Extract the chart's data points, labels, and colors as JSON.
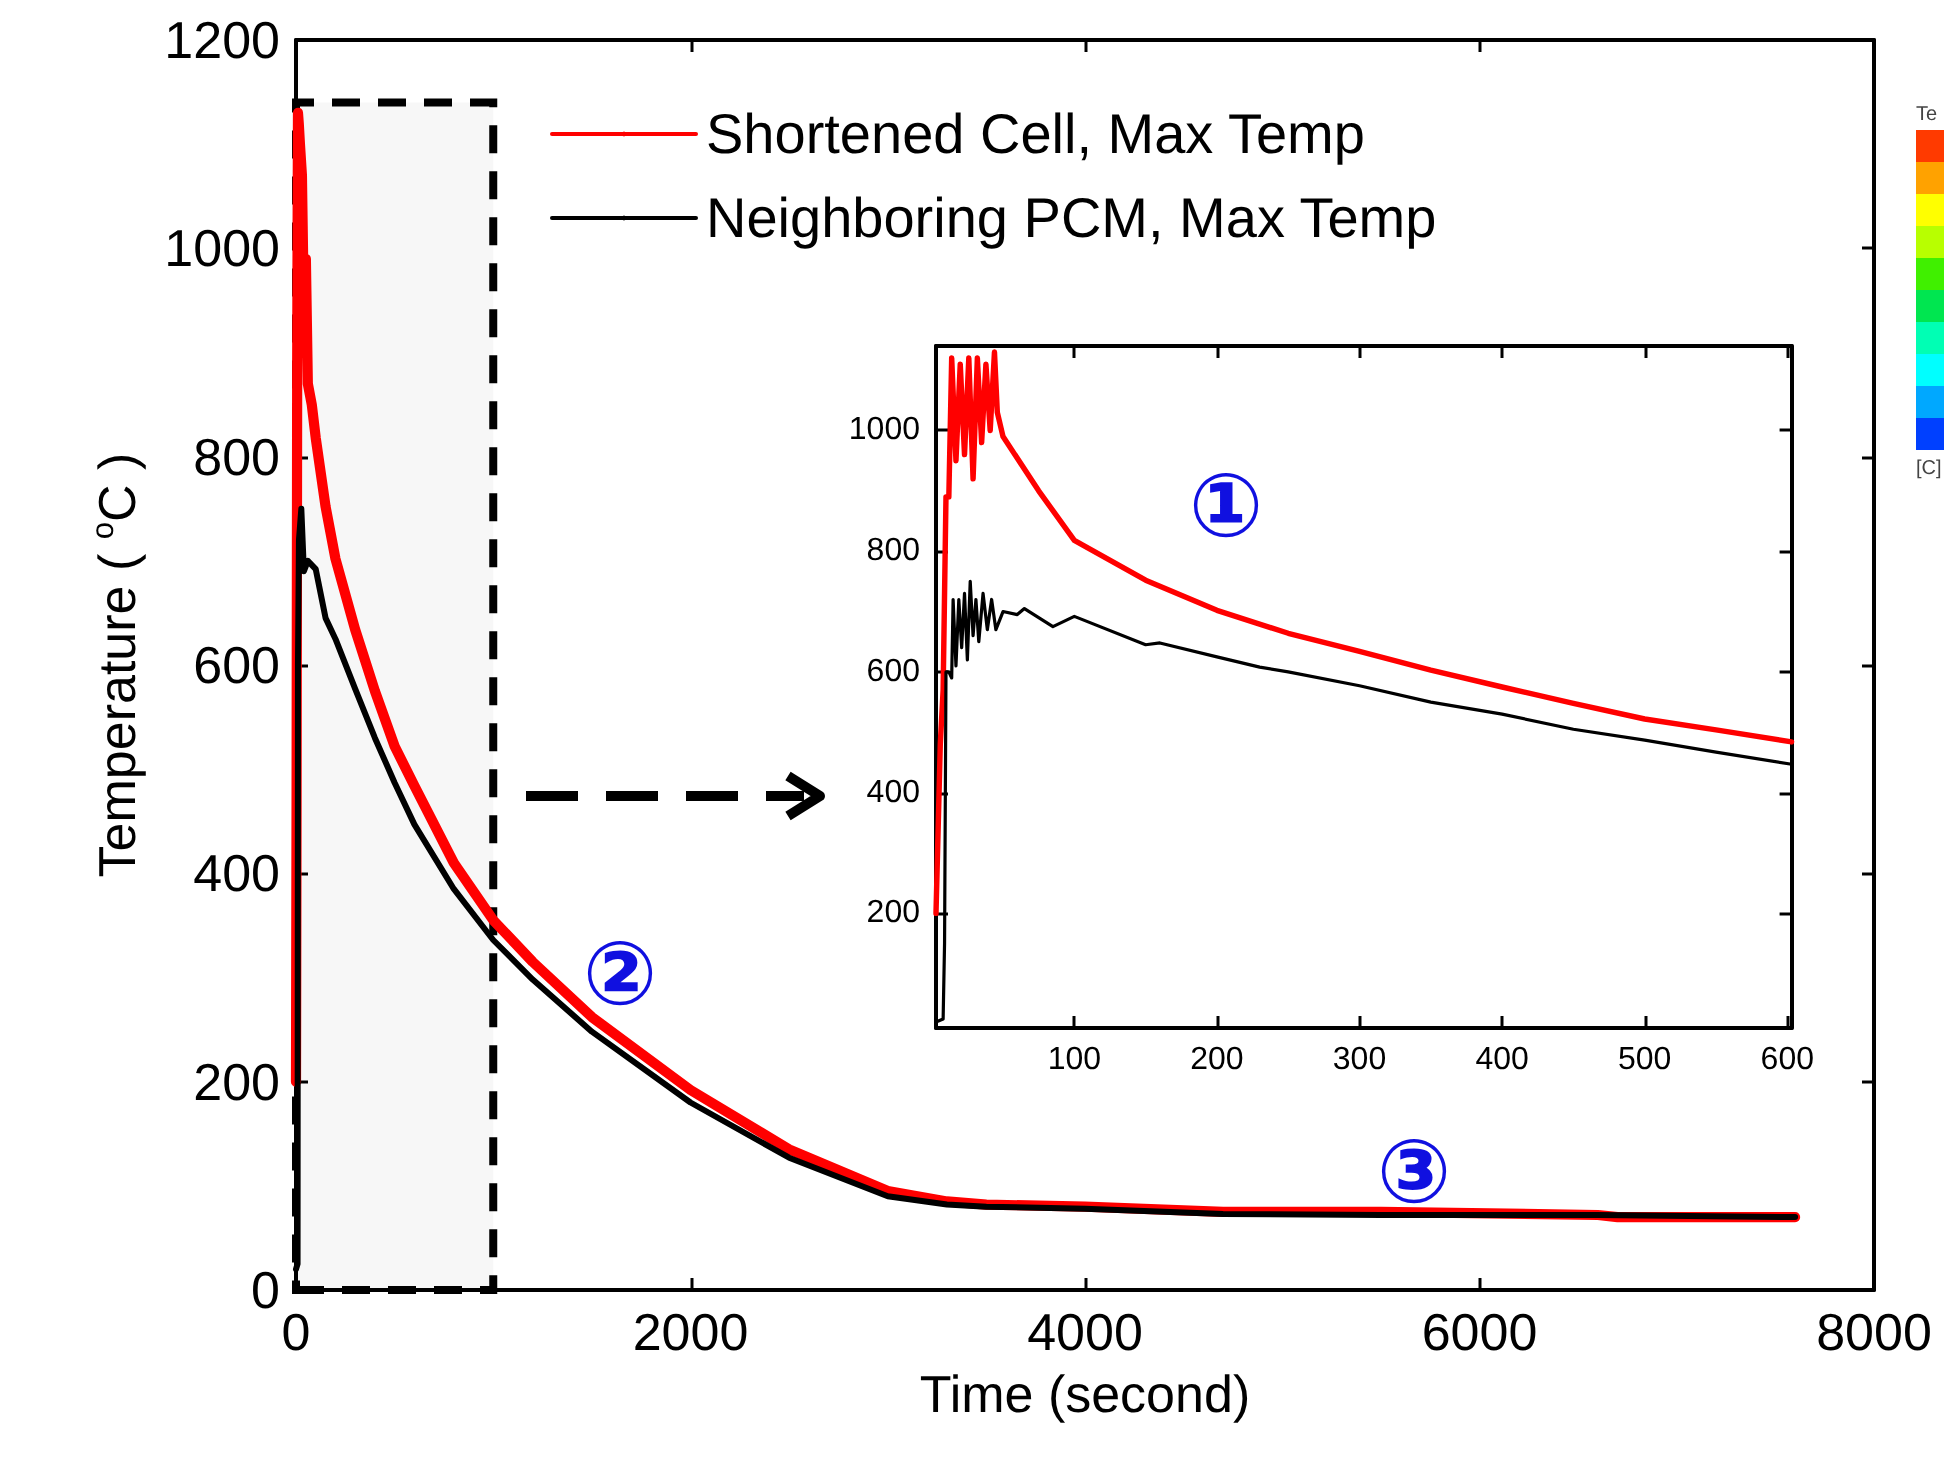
{
  "chart_data": [
    {
      "type": "line",
      "xlabel": "Time (second)",
      "ylabel": "Temperature ( $^{o}$C )",
      "xlim": [
        0,
        8000
      ],
      "ylim": [
        0,
        1200
      ],
      "xticks": [
        0,
        2000,
        4000,
        6000,
        8000
      ],
      "yticks": [
        0,
        200,
        400,
        600,
        800,
        1000,
        1200
      ],
      "grid": false,
      "legend": "top",
      "marker": "none",
      "line_style": "solid",
      "series": [
        {
          "name": "Shortened Cell, Max Temp",
          "color": "#ff0000",
          "x": [
            0,
            3,
            6,
            10,
            14,
            20,
            30,
            40,
            50,
            60,
            80,
            100,
            150,
            200,
            300,
            400,
            500,
            600,
            800,
            1000,
            1200,
            1500,
            2000,
            2500,
            3000,
            3300,
            3500,
            4000,
            4700,
            5500,
            6600,
            6700,
            7600
          ],
          "values": [
            200,
            480,
            890,
            1130,
            1120,
            1100,
            1070,
            940,
            990,
            870,
            850,
            818,
            752,
            702,
            634,
            575,
            522,
            484,
            410,
            355,
            315,
            262,
            192,
            135,
            95,
            85,
            82,
            80,
            75,
            75,
            72,
            70,
            70
          ]
        },
        {
          "name": "Neighboring PCM, Max Temp",
          "color": "#000000",
          "x": [
            0,
            8,
            10,
            15,
            27,
            40,
            60,
            100,
            150,
            200,
            300,
            400,
            500,
            600,
            800,
            1000,
            1200,
            1500,
            2000,
            2500,
            3000,
            3300,
            3500,
            4000,
            4700,
            5500,
            6600,
            7600
          ],
          "values": [
            20,
            25,
            600,
            720,
            750,
            690,
            700,
            692,
            645,
            625,
            577,
            530,
            487,
            447,
            385,
            336,
            298,
            248,
            180,
            127,
            90,
            82,
            80,
            78,
            73,
            72,
            72,
            70
          ]
        }
      ],
      "bands": [
        {
          "axis": "x",
          "from": 0,
          "to": 1000,
          "color": "#000000"
        }
      ],
      "annotations": [
        "②",
        "③",
        "Te",
        "[C]"
      ]
    },
    {
      "type": "line",
      "xlim": [
        3,
        603
      ],
      "ylim": [
        10,
        1140
      ],
      "xticks": [
        100,
        200,
        300,
        400,
        500,
        600
      ],
      "yticks": [
        200,
        400,
        600,
        800,
        1000
      ],
      "grid": false,
      "marker": "none",
      "line_style": "solid",
      "series": [
        {
          "color": "#ff0000",
          "x": [
            3,
            6,
            8,
            10,
            12,
            14,
            17,
            20,
            23,
            26,
            29,
            32,
            35,
            38,
            41,
            44,
            46,
            50,
            75,
            100,
            150,
            200,
            250,
            300,
            350,
            400,
            450,
            500,
            550,
            603
          ],
          "values": [
            200,
            480,
            570,
            890,
            890,
            1120,
            950,
            1110,
            960,
            1120,
            920,
            1120,
            980,
            1110,
            1000,
            1130,
            1030,
            990,
            900,
            818,
            752,
            702,
            664,
            634,
            603,
            575,
            548,
            522,
            504,
            484
          ]
        },
        {
          "color": "#000000",
          "x": [
            3,
            8,
            9,
            10,
            12,
            14,
            15,
            17,
            19,
            21,
            23,
            25,
            27,
            29,
            31,
            33,
            36,
            39,
            42,
            45,
            50,
            60,
            65,
            85,
            100,
            150,
            160,
            200,
            230,
            250,
            300,
            350,
            400,
            450,
            500,
            550,
            603
          ],
          "values": [
            20,
            25,
            150,
            600,
            600,
            590,
            720,
            610,
            720,
            640,
            730,
            620,
            750,
            660,
            720,
            650,
            730,
            670,
            720,
            670,
            700,
            695,
            705,
            675,
            692,
            645,
            648,
            625,
            608,
            600,
            577,
            550,
            530,
            505,
            487,
            467,
            447
          ]
        }
      ],
      "annotations": [
        "①"
      ]
    }
  ]
}
